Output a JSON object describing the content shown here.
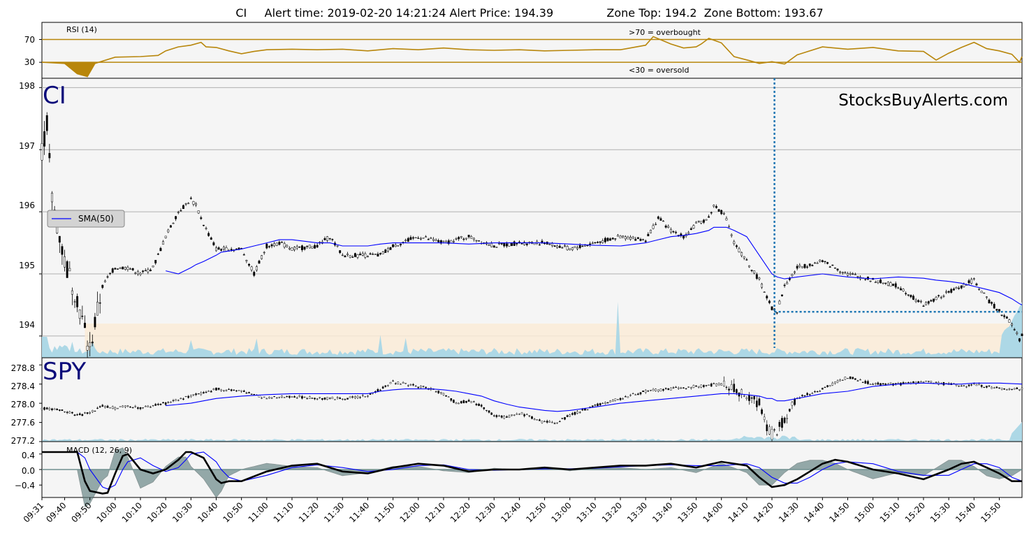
{
  "title": "CI     Alert time: 2019-02-20 14:21:24 Alert Price: 194.39               Zone Top: 194.2  Zone Bottom: 193.67",
  "watermark": "StocksBuyAlerts.com",
  "colors": {
    "rsi_line": "#b8860b",
    "rsi_levels": "#b8860b",
    "sma": "#0000ff",
    "volume": "#add8e6",
    "zone": "#faebd7",
    "alert_marker": "#1f77b4",
    "macd_line": "#000000",
    "macd_signal": "#0000ff",
    "macd_hist": "#5f7f7f",
    "panel_bg": "#f5f5f5",
    "grid": "#b0b0b0",
    "ticker": "#0a0a7a"
  },
  "x_axis": {
    "labels": [
      "09:31",
      "09:40",
      "09:50",
      "10:00",
      "10:10",
      "10:20",
      "10:30",
      "10:40",
      "10:50",
      "11:00",
      "11:10",
      "11:20",
      "11:30",
      "11:40",
      "11:50",
      "12:00",
      "12:10",
      "12:20",
      "12:30",
      "12:40",
      "12:50",
      "13:00",
      "13:10",
      "13:20",
      "13:30",
      "13:40",
      "13:50",
      "14:00",
      "14:10",
      "14:20",
      "14:30",
      "14:40",
      "14:50",
      "15:00",
      "15:10",
      "15:20",
      "15:30",
      "15:40",
      "15:50"
    ],
    "minutes_from_open": [
      1,
      10,
      20,
      30,
      40,
      50,
      60,
      70,
      80,
      90,
      100,
      110,
      120,
      130,
      140,
      150,
      160,
      170,
      180,
      190,
      200,
      210,
      220,
      230,
      240,
      250,
      260,
      270,
      280,
      290,
      300,
      310,
      320,
      330,
      340,
      350,
      360,
      370,
      380
    ],
    "domain_minutes": [
      1,
      389
    ]
  },
  "rsi_panel": {
    "label": "RSI (14)",
    "overbought_note": ">70 = overbought",
    "oversold_note": "<30 = oversold",
    "levels": [
      70,
      30
    ],
    "y_ticks": [
      "70",
      "30"
    ],
    "ylim": [
      2,
      100
    ]
  },
  "price_panel": {
    "ticker": "CI",
    "legend_label": "SMA(50)",
    "y_ticks": [
      "198",
      "197",
      "196",
      "195",
      "194"
    ],
    "ylim": [
      193.65,
      198.15
    ],
    "zone_top": 194.2,
    "zone_bottom": 193.67,
    "alert_minute": 291,
    "alert_price": 194.39
  },
  "spy_panel": {
    "ticker": "SPY",
    "y_ticks": [
      "278.8",
      "278.4",
      "278.0",
      "277.6",
      "277.2"
    ],
    "ylim": [
      277.2,
      278.95
    ]
  },
  "macd_panel": {
    "label": "MACD (12, 26, 9)",
    "y_ticks": [
      "0.4",
      "0.0",
      "−0.4"
    ],
    "ylim": [
      -0.72,
      0.72
    ]
  },
  "chart_data": [
    {
      "type": "line",
      "panel": "rsi",
      "title": "RSI (14)",
      "x": [
        1,
        10,
        15,
        19,
        22,
        30,
        40,
        47,
        50,
        55,
        60,
        64,
        66,
        70,
        75,
        80,
        85,
        90,
        100,
        110,
        120,
        130,
        140,
        150,
        160,
        170,
        180,
        190,
        200,
        210,
        220,
        230,
        240,
        243,
        250,
        255,
        260,
        262,
        265,
        270,
        275,
        281,
        285,
        290,
        295,
        300,
        310,
        320,
        330,
        340,
        350,
        355,
        360,
        365,
        370,
        375,
        380,
        385,
        388,
        389
      ],
      "series": [
        {
          "name": "RSI (14)",
          "values": [
            30,
            28,
            10,
            5,
            28,
            39,
            40,
            42,
            50,
            57,
            60,
            65,
            57,
            56,
            50,
            45,
            49,
            52,
            53,
            52,
            53,
            50,
            54,
            52,
            55,
            52,
            51,
            52,
            50,
            51,
            52,
            52,
            60,
            75,
            62,
            55,
            57,
            62,
            72,
            64,
            40,
            33,
            28,
            31,
            27,
            43,
            57,
            53,
            56,
            50,
            49,
            34,
            46,
            56,
            65,
            54,
            50,
            44,
            30,
            40
          ]
        }
      ],
      "ylim": [
        2,
        100
      ]
    },
    {
      "type": "line",
      "panel": "price",
      "title": "CI",
      "x": [
        1,
        3,
        5,
        10,
        15,
        19,
        20,
        22,
        25,
        28,
        30,
        32,
        35,
        40,
        45,
        50,
        55,
        60,
        62,
        65,
        70,
        72,
        80,
        85,
        90,
        95,
        100,
        110,
        115,
        120,
        130,
        135,
        140,
        150,
        160,
        170,
        180,
        190,
        200,
        210,
        220,
        230,
        240,
        245,
        250,
        255,
        260,
        265,
        267,
        270,
        272,
        275,
        280,
        285,
        290,
        292,
        295,
        300,
        310,
        320,
        330,
        340,
        350,
        355,
        360,
        365,
        370,
        375,
        380,
        385,
        388,
        389
      ],
      "series": [
        {
          "name": "price",
          "values": [
            197.0,
            197.4,
            196.2,
            195.2,
            194.6,
            193.9,
            193.8,
            194.2,
            194.8,
            195.0,
            195.1,
            195.1,
            195.1,
            195.0,
            195.1,
            195.6,
            196.0,
            196.2,
            196.1,
            195.8,
            195.4,
            195.4,
            195.4,
            195.0,
            195.45,
            195.5,
            195.4,
            195.45,
            195.6,
            195.3,
            195.3,
            195.3,
            195.45,
            195.6,
            195.5,
            195.6,
            195.45,
            195.5,
            195.5,
            195.4,
            195.5,
            195.6,
            195.55,
            195.9,
            195.7,
            195.6,
            195.8,
            195.9,
            196.1,
            196.0,
            195.9,
            195.5,
            195.2,
            194.9,
            194.45,
            194.4,
            194.8,
            195.1,
            195.2,
            195.0,
            194.9,
            194.8,
            194.5,
            194.6,
            194.7,
            194.8,
            194.9,
            194.6,
            194.4,
            194.2,
            193.95,
            194.0
          ]
        },
        {
          "name": "SMA(50)",
          "values": [
            null,
            null,
            null,
            null,
            null,
            null,
            null,
            null,
            null,
            null,
            null,
            null,
            null,
            null,
            null,
            195.05,
            195.0,
            195.1,
            195.15,
            195.2,
            195.3,
            195.35,
            195.4,
            195.45,
            195.5,
            195.55,
            195.55,
            195.5,
            195.5,
            195.45,
            195.45,
            195.48,
            195.5,
            195.5,
            195.5,
            195.48,
            195.5,
            195.5,
            195.5,
            195.48,
            195.46,
            195.45,
            195.5,
            195.55,
            195.6,
            195.62,
            195.65,
            195.7,
            195.75,
            195.75,
            195.75,
            195.7,
            195.6,
            195.3,
            195.0,
            194.95,
            194.92,
            194.95,
            195.0,
            194.95,
            194.92,
            194.95,
            194.93,
            194.9,
            194.88,
            194.85,
            194.8,
            194.75,
            194.7,
            194.6,
            194.52,
            194.5
          ]
        }
      ],
      "ylim": [
        193.65,
        198.15
      ]
    },
    {
      "type": "line",
      "panel": "spy",
      "title": "SPY",
      "x": [
        1,
        10,
        15,
        20,
        25,
        30,
        35,
        40,
        45,
        50,
        60,
        65,
        70,
        80,
        90,
        100,
        110,
        120,
        130,
        135,
        140,
        145,
        150,
        155,
        160,
        165,
        170,
        175,
        180,
        185,
        190,
        200,
        205,
        210,
        220,
        230,
        240,
        250,
        260,
        270,
        272,
        275,
        280,
        285,
        288,
        290,
        292,
        295,
        300,
        310,
        320,
        330,
        340,
        350,
        360,
        365,
        370,
        380,
        389
      ],
      "series": [
        {
          "name": "SPY",
          "values": [
            277.9,
            277.85,
            277.75,
            277.8,
            277.95,
            277.9,
            277.95,
            277.9,
            277.95,
            278.0,
            278.15,
            278.2,
            278.3,
            278.25,
            278.1,
            278.15,
            278.1,
            278.1,
            278.15,
            278.3,
            278.45,
            278.4,
            278.35,
            278.3,
            278.2,
            278.0,
            278.05,
            277.95,
            277.75,
            277.7,
            277.8,
            277.6,
            277.6,
            277.75,
            277.95,
            278.1,
            278.25,
            278.3,
            278.35,
            278.4,
            278.35,
            278.3,
            278.1,
            278.0,
            277.5,
            277.35,
            277.4,
            277.7,
            278.1,
            278.3,
            278.55,
            278.4,
            278.4,
            278.45,
            278.4,
            278.35,
            278.4,
            278.3,
            278.3
          ]
        },
        {
          "name": "SMA(50)",
          "values": [
            null,
            null,
            null,
            null,
            null,
            null,
            null,
            null,
            null,
            277.95,
            278.0,
            278.05,
            278.1,
            278.15,
            278.18,
            278.2,
            278.2,
            278.2,
            278.2,
            278.25,
            278.28,
            278.3,
            278.3,
            278.3,
            278.28,
            278.25,
            278.2,
            278.15,
            278.05,
            277.98,
            277.92,
            277.85,
            277.83,
            277.85,
            277.92,
            278.0,
            278.05,
            278.1,
            278.15,
            278.2,
            278.2,
            278.2,
            278.18,
            278.15,
            278.1,
            278.1,
            278.05,
            278.05,
            278.1,
            278.2,
            278.25,
            278.35,
            278.4,
            278.42,
            278.4,
            278.4,
            278.42,
            278.42,
            278.4
          ]
        }
      ],
      "ylim": [
        277.2,
        278.95
      ]
    },
    {
      "type": "line",
      "panel": "macd",
      "title": "MACD (12, 26, 9)",
      "x": [
        1,
        10,
        15,
        18,
        20,
        25,
        27,
        30,
        33,
        35,
        40,
        45,
        50,
        55,
        58,
        60,
        65,
        70,
        72,
        75,
        80,
        90,
        100,
        110,
        120,
        130,
        140,
        150,
        160,
        170,
        180,
        190,
        200,
        210,
        220,
        230,
        240,
        250,
        260,
        270,
        280,
        285,
        290,
        295,
        300,
        305,
        310,
        315,
        320,
        330,
        340,
        350,
        360,
        365,
        370,
        375,
        380,
        385,
        389
      ],
      "series": [
        {
          "name": "MACD",
          "values": [
            0.45,
            0.45,
            0.45,
            -0.3,
            -0.55,
            -0.62,
            -0.6,
            -0.1,
            0.35,
            0.4,
            0.0,
            -0.1,
            0.0,
            0.25,
            0.45,
            0.45,
            0.3,
            -0.25,
            -0.35,
            -0.3,
            -0.3,
            -0.05,
            0.1,
            0.15,
            -0.05,
            -0.1,
            0.05,
            0.15,
            0.1,
            -0.05,
            0.0,
            0.0,
            0.05,
            0.0,
            0.05,
            0.1,
            0.1,
            0.15,
            0.05,
            0.2,
            0.1,
            -0.2,
            -0.45,
            -0.4,
            -0.25,
            -0.05,
            0.15,
            0.25,
            0.2,
            0.0,
            -0.1,
            -0.25,
            0.0,
            0.15,
            0.2,
            0.05,
            -0.1,
            -0.3,
            -0.3
          ]
        },
        {
          "name": "Signal",
          "values": [
            0.45,
            0.45,
            0.45,
            0.3,
            0.0,
            -0.45,
            -0.5,
            -0.4,
            0.0,
            0.2,
            0.3,
            0.1,
            -0.05,
            0.05,
            0.25,
            0.4,
            0.45,
            0.2,
            0.0,
            -0.2,
            -0.3,
            -0.15,
            0.05,
            0.12,
            0.05,
            -0.05,
            0.0,
            0.1,
            0.12,
            0.0,
            -0.02,
            0.0,
            0.02,
            0.02,
            0.03,
            0.07,
            0.1,
            0.12,
            0.1,
            0.1,
            0.15,
            0.05,
            -0.2,
            -0.35,
            -0.35,
            -0.2,
            0.0,
            0.15,
            0.2,
            0.15,
            -0.05,
            -0.15,
            -0.15,
            0.0,
            0.15,
            0.15,
            0.05,
            -0.2,
            -0.3
          ]
        }
      ],
      "ylim": [
        -0.72,
        0.72
      ]
    }
  ]
}
